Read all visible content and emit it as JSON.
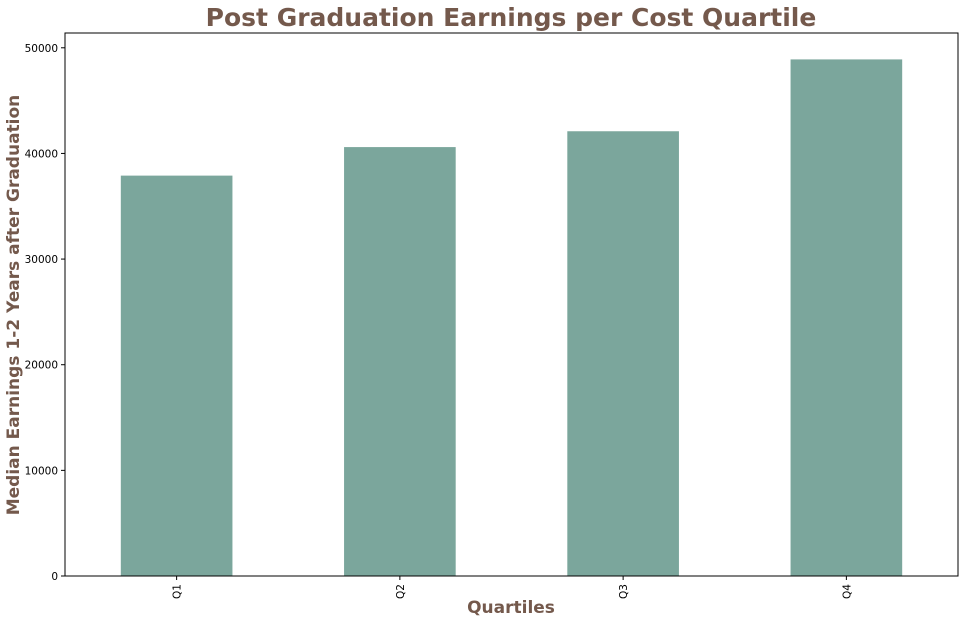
{
  "chart_data": {
    "type": "bar",
    "title": "Post Graduation Earnings per Cost Quartile",
    "xlabel": "Quartiles",
    "ylabel": "Median Earnings 1-2 Years after Graduation",
    "categories": [
      "Q1",
      "Q2",
      "Q3",
      "Q4"
    ],
    "values": [
      37900,
      40600,
      42100,
      48900
    ],
    "ylim": [
      0,
      51400
    ],
    "yticks": [
      0,
      10000,
      20000,
      30000,
      40000,
      50000
    ],
    "ytick_labels": [
      "0",
      "10000",
      "20000",
      "30000",
      "40000",
      "50000"
    ],
    "grid": false,
    "legend": "none",
    "bar_color": "#7ba69c",
    "title_color": "#74594c",
    "axis_label_color": "#74594c",
    "xtick_rotation_deg": -90
  }
}
